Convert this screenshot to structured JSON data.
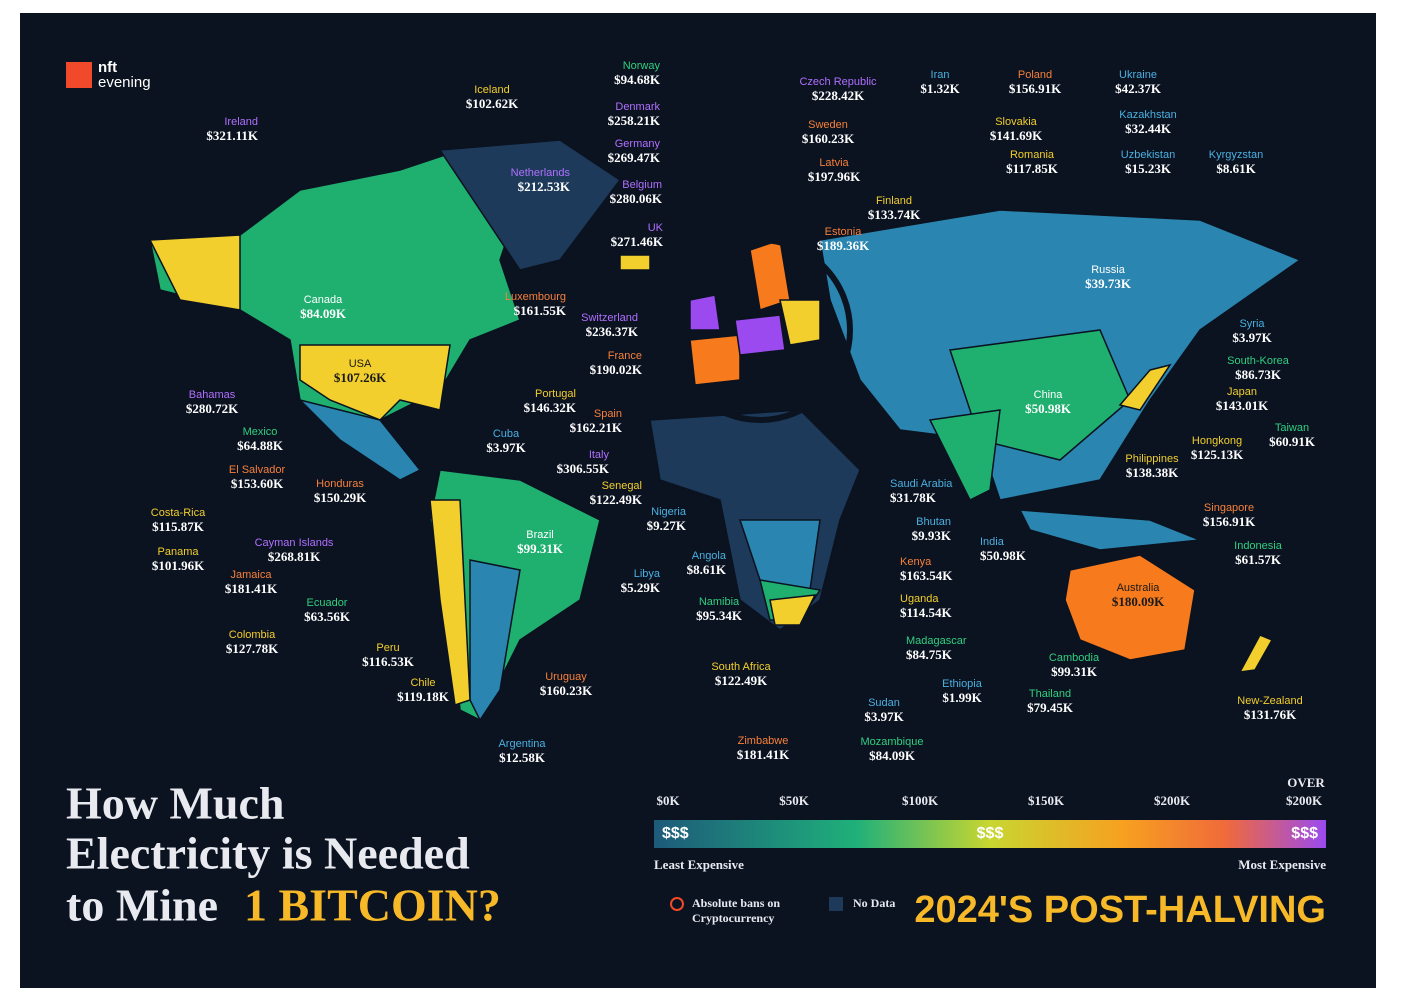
{
  "logo": {
    "line1": "nft",
    "line2": "evening"
  },
  "title": {
    "line1": "How Much",
    "line2": "Electricity is Needed",
    "line3": "to Mine",
    "highlight": "1 BITCOIN?"
  },
  "subtitle": "2024'S POST-HALVING",
  "legend": {
    "ticks": [
      "$0K",
      "$50K",
      "$100K",
      "$150K",
      "$200K"
    ],
    "over_top": "OVER",
    "over": "$200K",
    "symbol": "$$$",
    "low": "Least Expensive",
    "high": "Most Expensive",
    "ban": "Absolute bans on",
    "ban2": "Cryptocurrency",
    "nodata": "No Data"
  },
  "countries": [
    {
      "name": "Norway",
      "value": "$94.68K"
    },
    {
      "name": "Iceland",
      "value": "$102.62K"
    },
    {
      "name": "Ireland",
      "value": "$321.11K"
    },
    {
      "name": "Denmark",
      "value": "$258.21K"
    },
    {
      "name": "Germany",
      "value": "$269.47K"
    },
    {
      "name": "Netherlands",
      "value": "$212.53K"
    },
    {
      "name": "Belgium",
      "value": "$280.06K"
    },
    {
      "name": "UK",
      "value": "$271.46K"
    },
    {
      "name": "Luxembourg",
      "value": "$161.55K"
    },
    {
      "name": "Switzerland",
      "value": "$236.37K"
    },
    {
      "name": "France",
      "value": "$190.02K"
    },
    {
      "name": "Portugal",
      "value": "$146.32K"
    },
    {
      "name": "Spain",
      "value": "$162.21K"
    },
    {
      "name": "Italy",
      "value": "$306.55K"
    },
    {
      "name": "Senegal",
      "value": "$122.49K"
    },
    {
      "name": "Nigeria",
      "value": "$9.27K"
    },
    {
      "name": "Angola",
      "value": "$8.61K"
    },
    {
      "name": "Libya",
      "value": "$5.29K"
    },
    {
      "name": "Namibia",
      "value": "$95.34K"
    },
    {
      "name": "South Africa",
      "value": "$122.49K"
    },
    {
      "name": "Zimbabwe",
      "value": "$181.41K"
    },
    {
      "name": "Mozambique",
      "value": "$84.09K"
    },
    {
      "name": "Sudan",
      "value": "$3.97K"
    },
    {
      "name": "Ethiopia",
      "value": "$1.99K"
    },
    {
      "name": "Madagascar",
      "value": "$84.75K"
    },
    {
      "name": "Uganda",
      "value": "$114.54K"
    },
    {
      "name": "Kenya",
      "value": "$163.54K"
    },
    {
      "name": "Bhutan",
      "value": "$9.93K"
    },
    {
      "name": "Saudi Arabia",
      "value": "$31.78K"
    },
    {
      "name": "India",
      "value": "$50.98K"
    },
    {
      "name": "Cambodia",
      "value": "$99.31K"
    },
    {
      "name": "Thailand",
      "value": "$79.45K"
    },
    {
      "name": "Australia",
      "value": "$180.09K"
    },
    {
      "name": "New-Zealand",
      "value": "$131.76K"
    },
    {
      "name": "Indonesia",
      "value": "$61.57K"
    },
    {
      "name": "Singapore",
      "value": "$156.91K"
    },
    {
      "name": "Philippines",
      "value": "$138.38K"
    },
    {
      "name": "Hongkong",
      "value": "$125.13K"
    },
    {
      "name": "Taiwan",
      "value": "$60.91K"
    },
    {
      "name": "Japan",
      "value": "$143.01K"
    },
    {
      "name": "South-Korea",
      "value": "$86.73K"
    },
    {
      "name": "Syria",
      "value": "$3.97K"
    },
    {
      "name": "China",
      "value": "$50.98K"
    },
    {
      "name": "Russia",
      "value": "$39.73K"
    },
    {
      "name": "Kyrgyzstan",
      "value": "$8.61K"
    },
    {
      "name": "Uzbekistan",
      "value": "$15.23K"
    },
    {
      "name": "Kazakhstan",
      "value": "$32.44K"
    },
    {
      "name": "Ukraine",
      "value": "$42.37K"
    },
    {
      "name": "Poland",
      "value": "$156.91K"
    },
    {
      "name": "Iran",
      "value": "$1.32K"
    },
    {
      "name": "Czech Republic",
      "value": "$228.42K"
    },
    {
      "name": "Sweden",
      "value": "$160.23K"
    },
    {
      "name": "Slovakia",
      "value": "$141.69K"
    },
    {
      "name": "Romania",
      "value": "$117.85K"
    },
    {
      "name": "Latvia",
      "value": "$197.96K"
    },
    {
      "name": "Finland",
      "value": "$133.74K"
    },
    {
      "name": "Estonia",
      "value": "$189.36K"
    },
    {
      "name": "Canada",
      "value": "$84.09K"
    },
    {
      "name": "USA",
      "value": "$107.26K"
    },
    {
      "name": "Bahamas",
      "value": "$280.72K"
    },
    {
      "name": "Mexico",
      "value": "$64.88K"
    },
    {
      "name": "El Salvador",
      "value": "$153.60K"
    },
    {
      "name": "Honduras",
      "value": "$150.29K"
    },
    {
      "name": "Cuba",
      "value": "$3.97K"
    },
    {
      "name": "Costa-Rica",
      "value": "$115.87K"
    },
    {
      "name": "Cayman Islands",
      "value": "$268.81K"
    },
    {
      "name": "Panama",
      "value": "$101.96K"
    },
    {
      "name": "Jamaica",
      "value": "$181.41K"
    },
    {
      "name": "Ecuador",
      "value": "$63.56K"
    },
    {
      "name": "Colombia",
      "value": "$127.78K"
    },
    {
      "name": "Peru",
      "value": "$116.53K"
    },
    {
      "name": "Chile",
      "value": "$119.18K"
    },
    {
      "name": "Uruguay",
      "value": "$160.23K"
    },
    {
      "name": "Argentina",
      "value": "$12.58K"
    },
    {
      "name": "Brazil",
      "value": "$99.31K"
    }
  ]
}
